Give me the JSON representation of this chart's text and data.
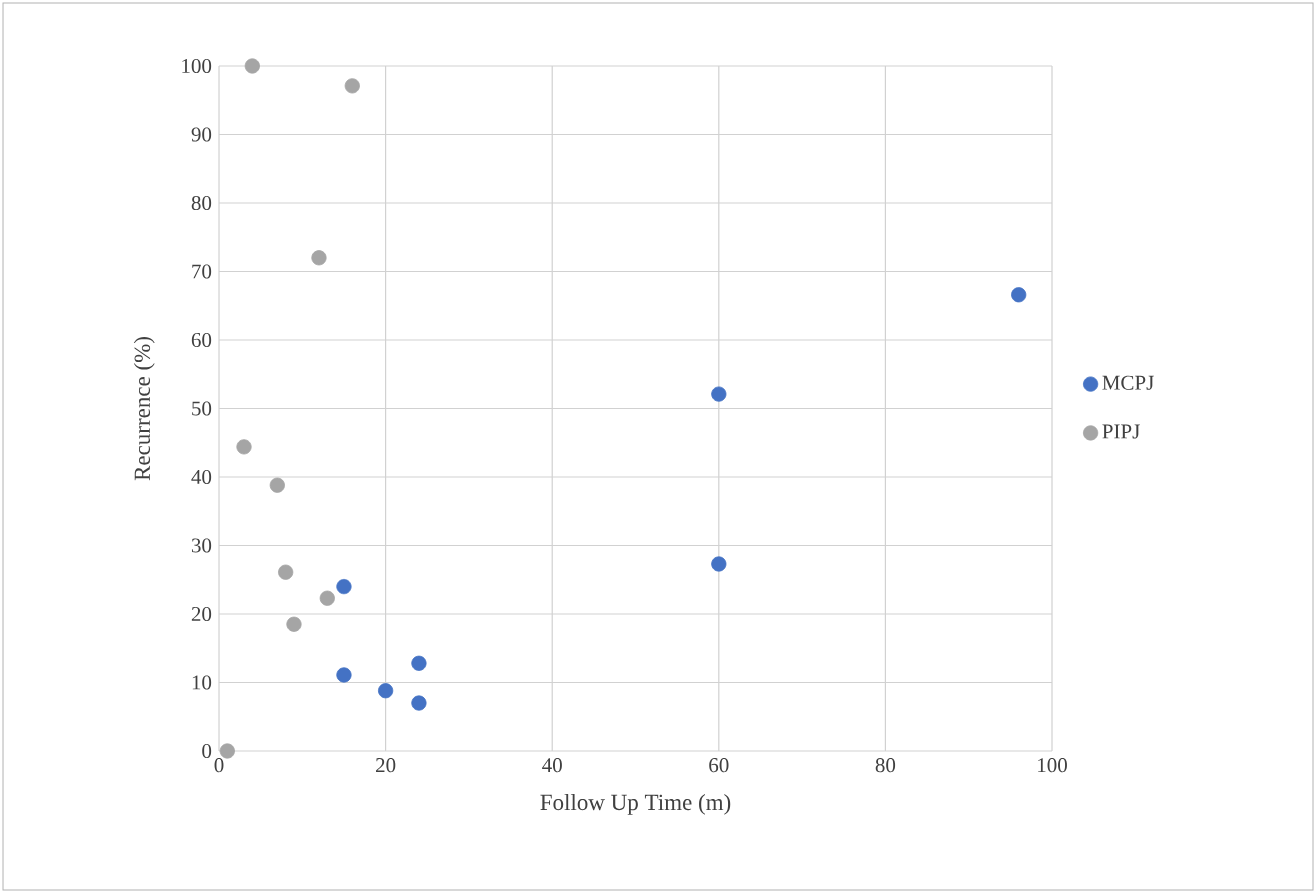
{
  "chart_data": {
    "type": "scatter",
    "xlabel": "Follow Up Time (m)",
    "ylabel": "Recurrence (%)",
    "xlim": [
      0,
      100
    ],
    "xticks": [
      0,
      20,
      40,
      60,
      80,
      100
    ],
    "ylim": [
      0,
      100
    ],
    "yticks": [
      0,
      10,
      20,
      30,
      40,
      50,
      60,
      70,
      80,
      90,
      100
    ],
    "grid": true,
    "legend": "right",
    "marker": "circle",
    "series": [
      {
        "name": "MCPJ",
        "color": "#4472c4",
        "x": [
          15,
          15,
          20,
          24,
          24,
          60,
          60,
          96
        ],
        "values": [
          24,
          11.1,
          8.8,
          12.8,
          7.0,
          52.1,
          27.3,
          66.6
        ]
      },
      {
        "name": "PIPJ",
        "color": "#a5a5a5",
        "x": [
          1,
          4,
          16,
          12,
          3,
          7,
          8,
          13,
          9
        ],
        "values": [
          0,
          100,
          97.1,
          72.0,
          44.4,
          38.8,
          26.1,
          22.3,
          18.5
        ]
      }
    ]
  }
}
